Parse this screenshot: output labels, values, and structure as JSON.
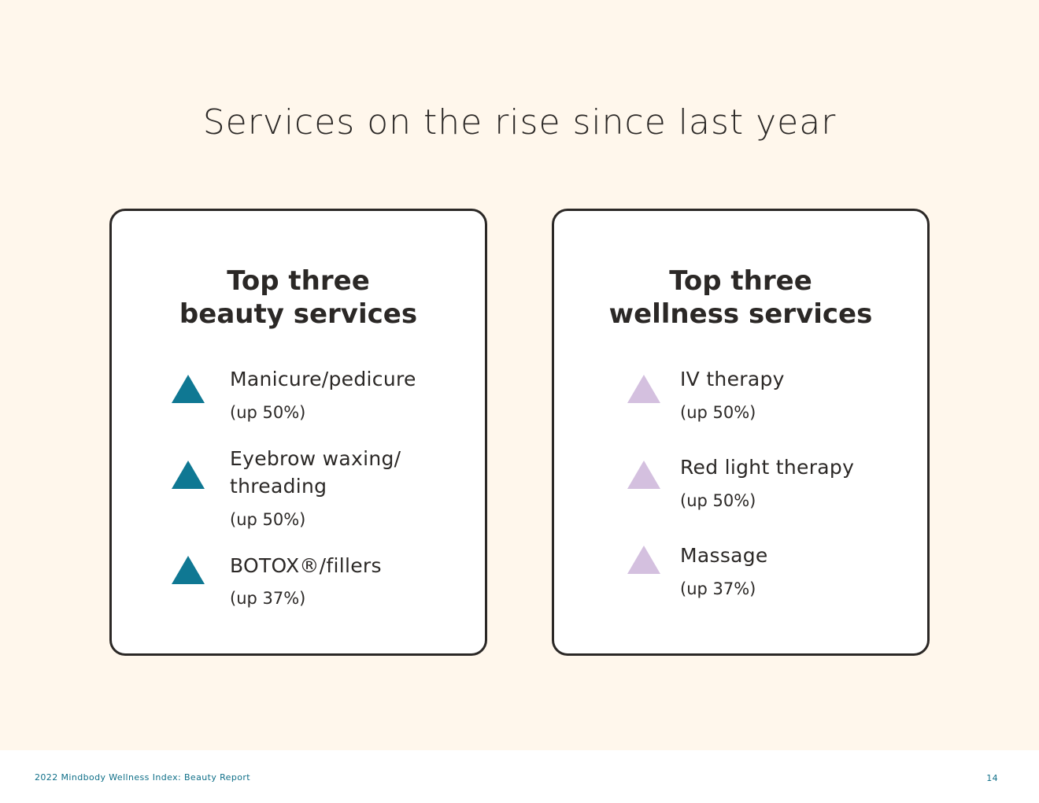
{
  "page_title": "Services on the rise since last year",
  "beauty": {
    "title_line1": "Top three",
    "title_line2": "beauty services",
    "items": [
      {
        "label_line1": "Manicure/pedicure",
        "change": "(up 50%)"
      },
      {
        "label_line1": "Eyebrow waxing/",
        "label_line2": "threading",
        "change": "(up 50%)"
      },
      {
        "label_line1": "BOTOX®/fillers",
        "change": "(up 37%)"
      }
    ]
  },
  "wellness": {
    "title_line1": "Top three",
    "title_line2": "wellness services",
    "items": [
      {
        "label_line1": "IV therapy",
        "change": "(up 50%)"
      },
      {
        "label_line1": "Red light therapy",
        "change": "(up 50%)"
      },
      {
        "label_line1": "Massage",
        "change": "(up 37%)"
      }
    ]
  },
  "footer": {
    "report_name": "2022 Mindbody Wellness Index: Beauty Report",
    "page_number": "14"
  },
  "colors": {
    "background": "#fff7ec",
    "beauty_triangle": "#0f7893",
    "wellness_triangle": "#d4c0df",
    "footer_text": "#0f6f88"
  },
  "icons": {
    "beauty_item_icon": "up-triangle-icon",
    "wellness_item_icon": "up-triangle-icon"
  }
}
